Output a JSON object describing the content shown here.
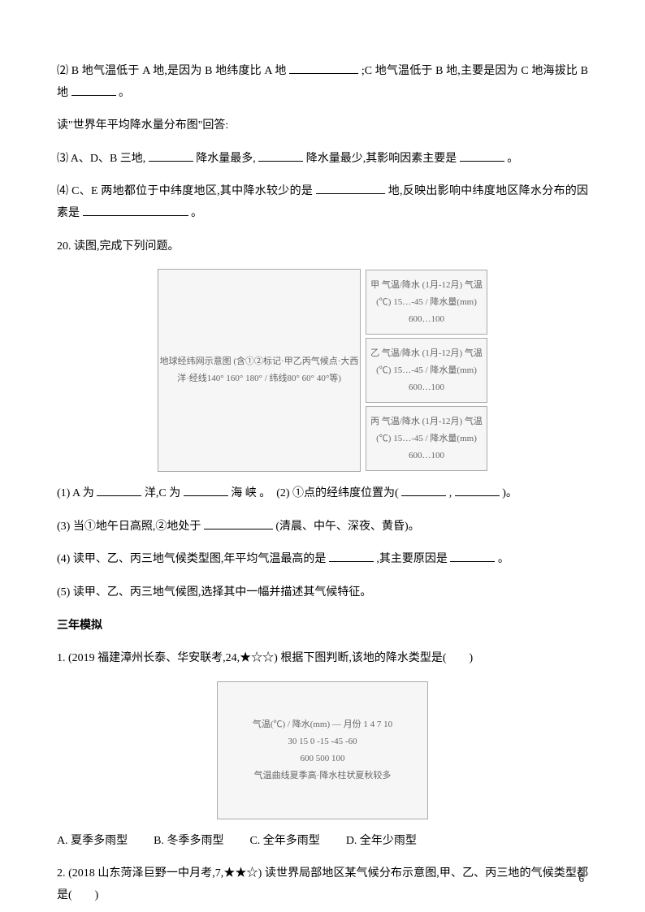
{
  "q_pre_1": "⑵ B 地气温低于 A 地,是因为 B 地纬度比 A 地",
  "q_pre_1b": ";C 地气温低于 B 地,主要是因为 C 地海拔比 B 地",
  "q_pre_1c": "。",
  "q_map_intro": "读\"世界年平均降水量分布图\"回答:",
  "q_pre_2a": "⑶ A、D、B 三地,",
  "q_pre_2b": "降水量最多,",
  "q_pre_2c": "降水量最少,其影响因素主要是",
  "q_pre_2d": "。",
  "q_pre_3a": "⑷ C、E 两地都位于中纬度地区,其中降水较少的是",
  "q_pre_3b": "地,反映出影响中纬度地区降水分布的因素是",
  "q_pre_3c": "。",
  "q20_title": "20. 读图,完成下列问题。",
  "fig20": {
    "globe_label": "地球经纬网示意图\n(含①②标记·甲乙丙气候点·大西洋·经线140° 160° 180° / 纬线80° 60° 40°等)",
    "panels": [
      "甲 气温/降水 (1月-12月)\n气温(℃) 15…-45 / 降水量(mm) 600…100",
      "乙 气温/降水 (1月-12月)\n气温(℃) 15…-45 / 降水量(mm) 600…100",
      "丙 气温/降水 (1月-12月)\n气温(℃) 15…-45 / 降水量(mm) 600…100"
    ]
  },
  "q20_1a": "(1) A 为",
  "q20_1b": "洋,C 为",
  "q20_1c": " 海 峡 。　(2) ①点的经纬度位置为(",
  "q20_1d": ",",
  "q20_1e": ")。",
  "q20_3a": "(3) 当①地午日高照,②地处于",
  "q20_3b": " (清晨、中午、深夜、黄昏)。",
  "q20_4a": "(4) 读甲、乙、丙三地气候类型图,年平均气温最高的是",
  "q20_4b": ",其主要原因是",
  "q20_4c": "。",
  "q20_5": "(5) 读甲、乙、丙三地气候图,选择其中一幅并描述其气候特征。",
  "section_heading": "三年模拟",
  "m1_text": "1. (2019 福建漳州长泰、华安联考,24,★☆☆) 根据下图判断,该地的降水类型是(　　)",
  "m1_chart": {
    "caption": "气温(℃) / 降水(mm) — 月份 1 4 7 10",
    "temp_axis": "30 15 0 -15 -45 -60",
    "precip_axis": "600 500 100",
    "desc": "气温曲线夏季高·降水柱状夏秋较多"
  },
  "m1_options": {
    "a": "A. 夏季多雨型",
    "b": "B. 冬季多雨型",
    "c": "C. 全年多雨型",
    "d": "D. 全年少雨型"
  },
  "m2_text": "2. (2018 山东菏泽巨野一中月考,7,★★☆) 读世界局部地区某气候分布示意图,甲、乙、丙三地的气候类型都是(　　)",
  "page_number": "6"
}
